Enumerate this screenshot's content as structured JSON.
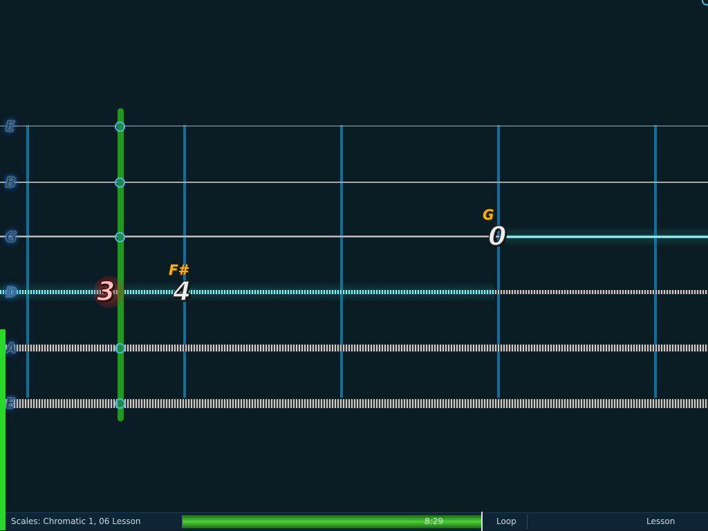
{
  "strings": [
    {
      "label": "E"
    },
    {
      "label": "B"
    },
    {
      "label": "G"
    },
    {
      "label": "D"
    },
    {
      "label": "A"
    },
    {
      "label": "E"
    }
  ],
  "notes": [
    {
      "string": "D",
      "fret": "3",
      "name": "",
      "state": "missed"
    },
    {
      "string": "D",
      "fret": "4",
      "name": "F#",
      "state": "upcoming"
    },
    {
      "string": "G",
      "fret": "0",
      "name": "G",
      "state": "upcoming"
    }
  ],
  "status_bar": {
    "song_title": "Scales: Chromatic 1, 06 Lesson",
    "time": "8:29",
    "progress_percent": 100,
    "loop_label": "Loop",
    "mode_label": "Lesson"
  },
  "colors": {
    "playhead": "#1f9a1f",
    "fret": "#0f6f9a",
    "progress": "#3ab82a",
    "accent_green": "#2ad82a"
  }
}
